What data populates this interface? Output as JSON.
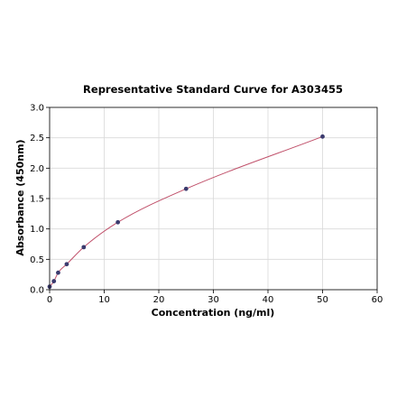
{
  "chart_data": {
    "type": "scatter",
    "title": "Representative Standard Curve for A303455",
    "xlabel": "Concentration (ng/ml)",
    "ylabel": "Absorbance (450nm)",
    "xlim": [
      0,
      60
    ],
    "ylim": [
      0,
      3.0
    ],
    "xticks": [
      0,
      10,
      20,
      30,
      40,
      50,
      60
    ],
    "yticks": [
      0.0,
      0.5,
      1.0,
      1.5,
      2.0,
      2.5,
      3.0
    ],
    "grid": true,
    "series": [
      {
        "points": [
          {
            "x": 0,
            "y": 0.05
          },
          {
            "x": 0.78,
            "y": 0.14
          },
          {
            "x": 1.56,
            "y": 0.28
          },
          {
            "x": 3.13,
            "y": 0.42
          },
          {
            "x": 6.25,
            "y": 0.7
          },
          {
            "x": 12.5,
            "y": 1.11
          },
          {
            "x": 25,
            "y": 1.66
          },
          {
            "x": 50,
            "y": 2.52
          }
        ],
        "point_color": "#3b3b6e",
        "fit_color": "#c0506a"
      }
    ]
  }
}
